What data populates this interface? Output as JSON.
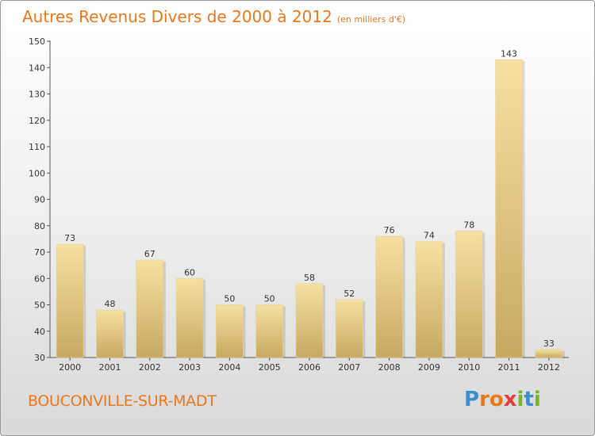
{
  "chart_data": {
    "type": "bar",
    "title": "Autres Revenus Divers de 2000 à 2012",
    "subtitle": "(en milliers d'€)",
    "categories": [
      "2000",
      "2001",
      "2002",
      "2003",
      "2004",
      "2005",
      "2006",
      "2007",
      "2008",
      "2009",
      "2010",
      "2011",
      "2012"
    ],
    "values": [
      73,
      48,
      67,
      60,
      50,
      50,
      58,
      52,
      76,
      74,
      78,
      143,
      33
    ],
    "ylim": [
      30,
      150
    ],
    "yticks": [
      30,
      40,
      50,
      60,
      70,
      80,
      90,
      100,
      110,
      120,
      130,
      140,
      150
    ],
    "grid": false,
    "xlabel": "",
    "ylabel": ""
  },
  "commune": "BOUCONVILLE-SUR-MADT",
  "logo": {
    "letters": [
      "P",
      "r",
      "o",
      "x",
      "i",
      "t",
      "i"
    ],
    "colors": [
      "#3a8fd0",
      "#e8781e",
      "#e8781e",
      "#e23c3c",
      "#77b52e",
      "#3a8fd0",
      "#77b52e"
    ]
  },
  "colors": {
    "title": "#e8781e",
    "bar_light": "#f5dfa0",
    "bar_dark": "#c9ab63"
  }
}
